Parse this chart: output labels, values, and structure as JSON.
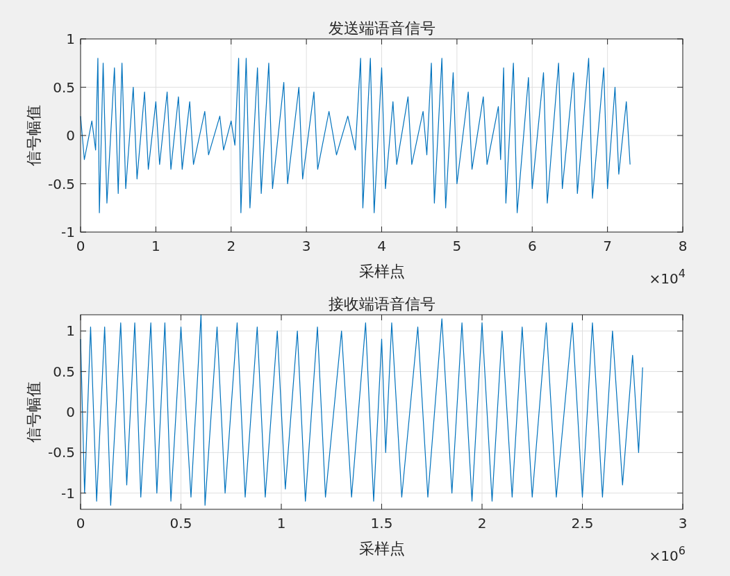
{
  "chart_data": [
    {
      "type": "line",
      "title": "发送端语音信号",
      "xlabel": "采样点",
      "ylabel": "信号幅值",
      "grid": true,
      "marker": "none",
      "line_style": "solid",
      "xlim": [
        0,
        8
      ],
      "ylim": [
        -1,
        1
      ],
      "xticks": [
        0,
        1,
        2,
        3,
        4,
        5,
        6,
        7,
        8
      ],
      "yticks": [
        -1,
        -0.5,
        0,
        0.5,
        1
      ],
      "annotations": [
        "×10$^{4}$"
      ],
      "series": [
        {
          "color": "#0072bd",
          "x": [
            0,
            0.05,
            0.15,
            0.2,
            0.23,
            0.25,
            0.3,
            0.35,
            0.45,
            0.5,
            0.55,
            0.6,
            0.7,
            0.75,
            0.85,
            0.9,
            1.0,
            1.05,
            1.15,
            1.2,
            1.3,
            1.35,
            1.45,
            1.5,
            1.65,
            1.7,
            1.85,
            1.9,
            2.0,
            2.05,
            2.1,
            2.13,
            2.2,
            2.25,
            2.35,
            2.4,
            2.5,
            2.55,
            2.7,
            2.75,
            2.9,
            2.95,
            3.1,
            3.15,
            3.3,
            3.4,
            3.55,
            3.65,
            3.72,
            3.75,
            3.85,
            3.9,
            4.0,
            4.05,
            4.15,
            4.2,
            4.35,
            4.4,
            4.55,
            4.6,
            4.66,
            4.7,
            4.8,
            4.85,
            4.95,
            5.0,
            5.15,
            5.2,
            5.35,
            5.4,
            5.55,
            5.58,
            5.62,
            5.65,
            5.75,
            5.8,
            5.95,
            6.0,
            6.15,
            6.2,
            6.35,
            6.4,
            6.55,
            6.6,
            6.75,
            6.8,
            6.95,
            7.0,
            7.1,
            7.15,
            7.25,
            7.3
          ],
          "values": [
            0.2,
            -0.25,
            0.15,
            -0.15,
            0.8,
            -0.8,
            0.75,
            -0.7,
            0.7,
            -0.6,
            0.75,
            -0.55,
            0.5,
            -0.45,
            0.45,
            -0.35,
            0.35,
            -0.3,
            0.45,
            -0.35,
            0.4,
            -0.35,
            0.35,
            -0.3,
            0.25,
            -0.2,
            0.2,
            -0.15,
            0.15,
            -0.1,
            0.8,
            -0.8,
            0.8,
            -0.75,
            0.7,
            -0.6,
            0.75,
            -0.55,
            0.55,
            -0.5,
            0.5,
            -0.45,
            0.45,
            -0.35,
            0.25,
            -0.2,
            0.2,
            -0.15,
            0.8,
            -0.75,
            0.8,
            -0.8,
            0.7,
            -0.55,
            0.35,
            -0.3,
            0.4,
            -0.3,
            0.25,
            -0.2,
            0.75,
            -0.7,
            0.8,
            -0.75,
            0.65,
            -0.5,
            0.45,
            -0.35,
            0.4,
            -0.3,
            0.3,
            -0.25,
            0.7,
            -0.7,
            0.75,
            -0.8,
            0.6,
            -0.55,
            0.65,
            -0.7,
            0.75,
            -0.55,
            0.65,
            -0.6,
            0.8,
            -0.65,
            0.7,
            -0.55,
            0.5,
            -0.4,
            0.35,
            -0.3
          ]
        }
      ]
    },
    {
      "type": "line",
      "title": "接收端语音信号",
      "xlabel": "采样点",
      "ylabel": "信号幅值",
      "grid": true,
      "marker": "none",
      "line_style": "solid",
      "xlim": [
        0,
        3
      ],
      "ylim": [
        -1.2,
        1.2
      ],
      "xticks": [
        0,
        0.5,
        1,
        1.5,
        2,
        2.5,
        3
      ],
      "yticks": [
        -1,
        -0.5,
        0,
        0.5,
        1
      ],
      "annotations": [
        "×10$^{6}$"
      ],
      "series": [
        {
          "color": "#0072bd",
          "x": [
            0,
            0.02,
            0.05,
            0.08,
            0.12,
            0.15,
            0.2,
            0.23,
            0.27,
            0.3,
            0.35,
            0.38,
            0.42,
            0.45,
            0.5,
            0.55,
            0.6,
            0.62,
            0.68,
            0.72,
            0.78,
            0.82,
            0.88,
            0.92,
            0.98,
            1.02,
            1.08,
            1.12,
            1.18,
            1.22,
            1.3,
            1.35,
            1.42,
            1.46,
            1.5,
            1.52,
            1.55,
            1.6,
            1.68,
            1.73,
            1.8,
            1.85,
            1.9,
            1.95,
            2.0,
            2.05,
            2.1,
            2.15,
            2.2,
            2.25,
            2.32,
            2.37,
            2.45,
            2.5,
            2.55,
            2.6,
            2.65,
            2.7,
            2.75,
            2.78,
            2.8
          ],
          "values": [
            0.9,
            -1.0,
            1.05,
            -1.1,
            1.05,
            -1.15,
            1.1,
            -0.9,
            1.1,
            -1.05,
            1.1,
            -1.0,
            1.1,
            -1.1,
            1.05,
            -1.05,
            1.2,
            -1.15,
            1.05,
            -1.0,
            1.1,
            -1.05,
            1.05,
            -1.05,
            1.0,
            -0.95,
            1.0,
            -1.1,
            1.05,
            -1.05,
            1.0,
            -1.05,
            1.1,
            -1.1,
            0.9,
            -0.5,
            1.1,
            -1.05,
            1.05,
            -1.05,
            1.15,
            -1.0,
            1.1,
            -1.1,
            1.1,
            -1.1,
            1.0,
            -1.05,
            1.05,
            -1.05,
            1.1,
            -1.05,
            1.1,
            -1.05,
            1.1,
            -1.05,
            1.0,
            -0.9,
            0.7,
            -0.5,
            0.55
          ]
        }
      ]
    }
  ]
}
